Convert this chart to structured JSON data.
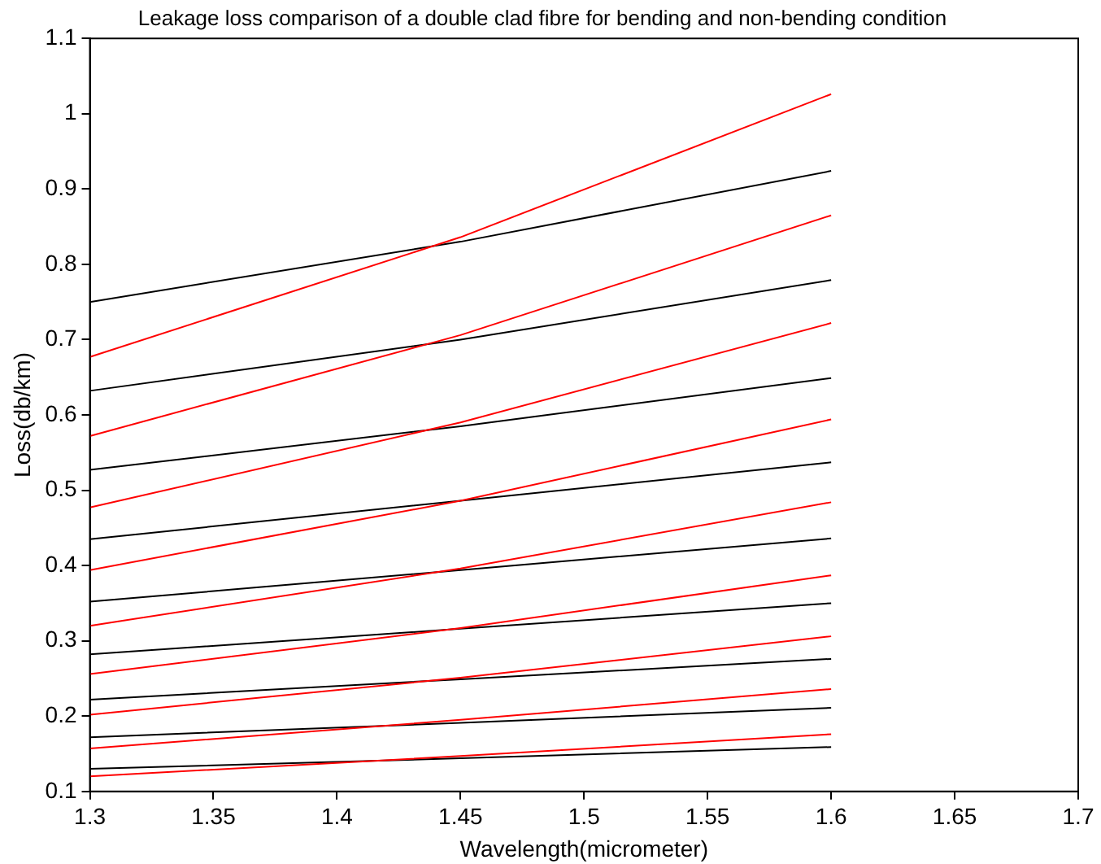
{
  "chart_data": {
    "type": "line",
    "title": "Leakage loss comparison of a double clad fibre for bending and non-bending condition",
    "xlabel": "Wavelength(micrometer)",
    "ylabel": "Loss(db/km)",
    "x": [
      1.3,
      1.45,
      1.6
    ],
    "series": [
      {
        "color": "#ff0000",
        "values": [
          0.677,
          0.836,
          1.026
        ]
      },
      {
        "color": "#000000",
        "values": [
          0.75,
          0.83,
          0.924
        ]
      },
      {
        "color": "#ff0000",
        "values": [
          0.572,
          0.706,
          0.865
        ]
      },
      {
        "color": "#000000",
        "values": [
          0.632,
          0.7,
          0.779
        ]
      },
      {
        "color": "#ff0000",
        "values": [
          0.477,
          0.59,
          0.722
        ]
      },
      {
        "color": "#000000",
        "values": [
          0.527,
          0.585,
          0.649
        ]
      },
      {
        "color": "#ff0000",
        "values": [
          0.394,
          0.486,
          0.594
        ]
      },
      {
        "color": "#000000",
        "values": [
          0.435,
          0.486,
          0.537
        ]
      },
      {
        "color": "#ff0000",
        "values": [
          0.32,
          0.396,
          0.484
        ]
      },
      {
        "color": "#000000",
        "values": [
          0.352,
          0.394,
          0.436
        ]
      },
      {
        "color": "#ff0000",
        "values": [
          0.256,
          0.317,
          0.387
        ]
      },
      {
        "color": "#000000",
        "values": [
          0.282,
          0.316,
          0.35
        ]
      },
      {
        "color": "#ff0000",
        "values": [
          0.202,
          0.251,
          0.306
        ]
      },
      {
        "color": "#000000",
        "values": [
          0.222,
          0.249,
          0.276
        ]
      },
      {
        "color": "#ff0000",
        "values": [
          0.157,
          0.195,
          0.236
        ]
      },
      {
        "color": "#000000",
        "values": [
          0.172,
          0.191,
          0.211
        ]
      },
      {
        "color": "#ff0000",
        "values": [
          0.12,
          0.147,
          0.176
        ]
      },
      {
        "color": "#000000",
        "values": [
          0.13,
          0.144,
          0.159
        ]
      }
    ],
    "xlim": [
      1.3,
      1.7
    ],
    "xticks": [
      1.3,
      1.35,
      1.4,
      1.45,
      1.5,
      1.55,
      1.6,
      1.65,
      1.7
    ],
    "ylim": [
      0.1,
      1.1
    ],
    "yticks": [
      0.1,
      0.2,
      0.3,
      0.4,
      0.5,
      0.6,
      0.7,
      0.8,
      0.9,
      1,
      1.1
    ],
    "grid": false,
    "legend": false,
    "marker": "none",
    "line_style": "solid"
  }
}
